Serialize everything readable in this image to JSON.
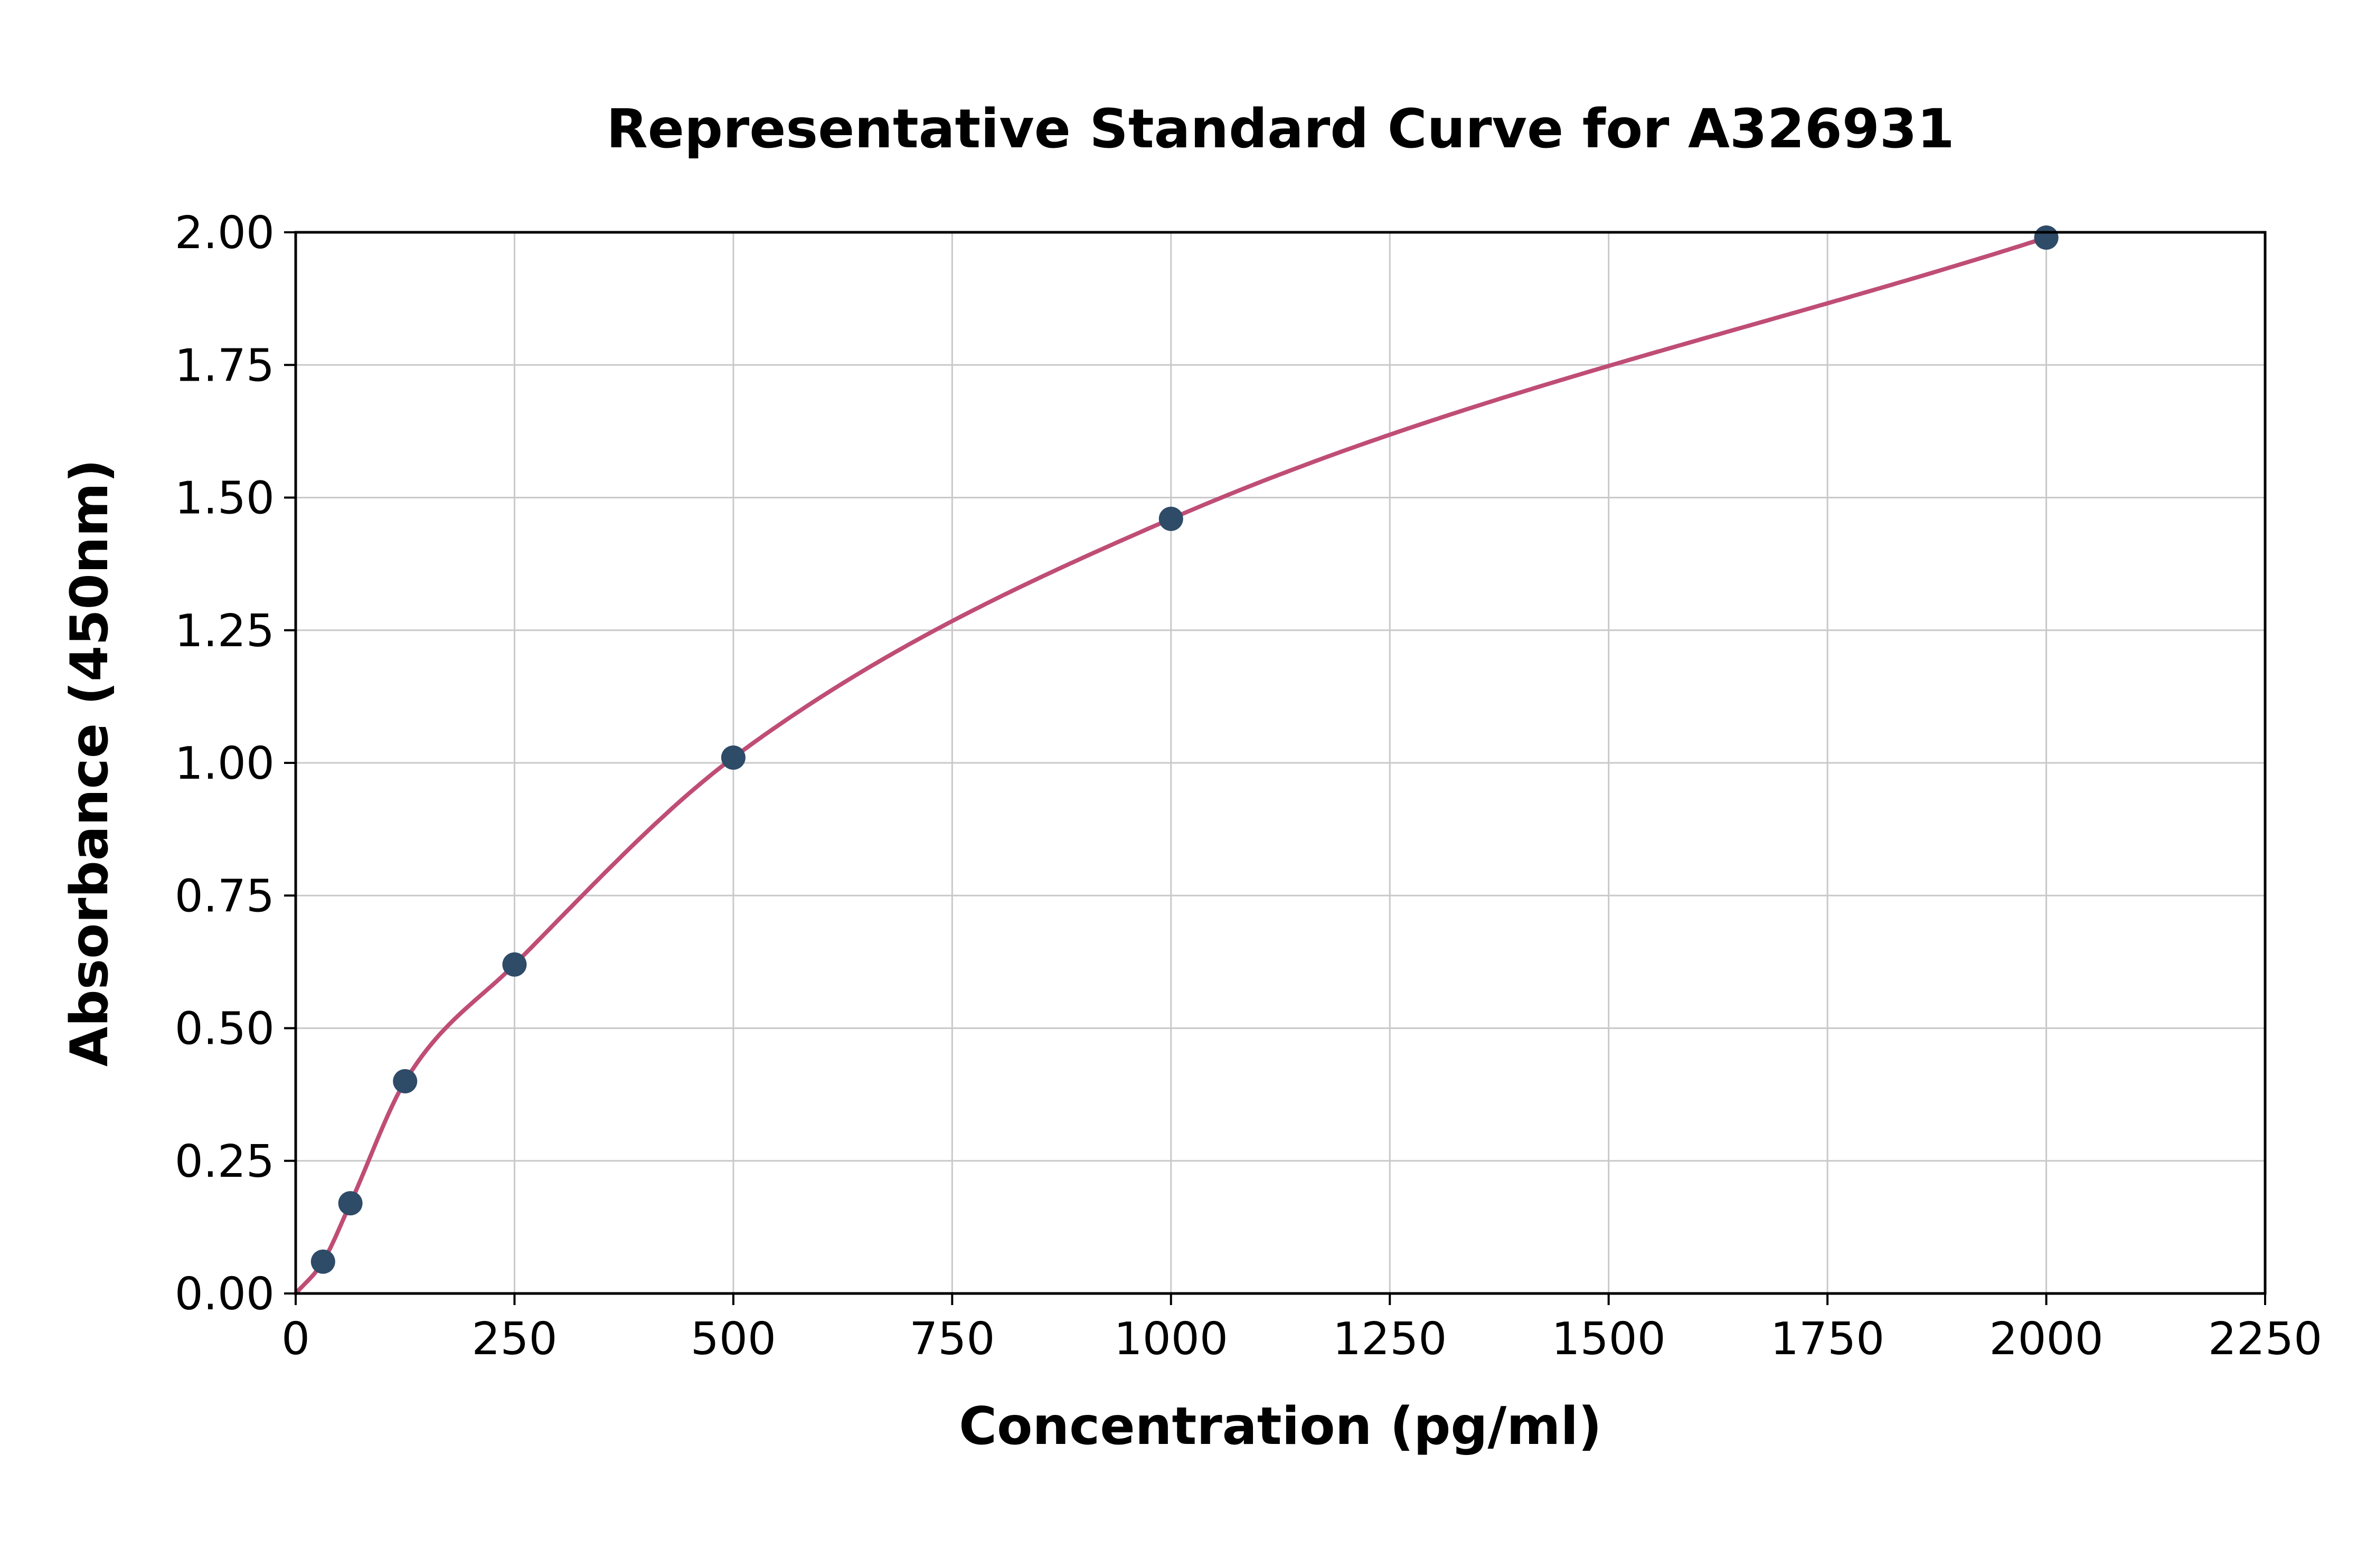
{
  "title": "Representative Standard Curve for A326931",
  "chart_data": {
    "type": "scatter",
    "title": "Representative Standard Curve for A326931",
    "xlabel": "Concentration (pg/ml)",
    "ylabel": "Absorbance (450nm)",
    "xlim": [
      0,
      2250
    ],
    "ylim": [
      0,
      2.0
    ],
    "grid": true,
    "legend": "none",
    "xticks": {
      "values": [
        0,
        250,
        500,
        750,
        1000,
        1250,
        1500,
        1750,
        2000,
        2250
      ],
      "labels": [
        "0",
        "250",
        "500",
        "750",
        "1000",
        "1250",
        "1500",
        "1750",
        "2000",
        "2250"
      ]
    },
    "yticks": {
      "values": [
        0,
        0.25,
        0.5,
        0.75,
        1.0,
        1.25,
        1.5,
        1.75,
        2.0
      ],
      "labels": [
        "0.00",
        "0.25",
        "0.50",
        "0.75",
        "1.00",
        "1.25",
        "1.50",
        "1.75",
        "2.00"
      ]
    },
    "series": [
      {
        "name": "standard-points",
        "type": "scatter",
        "x": [
          31.25,
          62.5,
          125,
          250,
          500,
          1000,
          2000
        ],
        "y": [
          0.06,
          0.17,
          0.4,
          0.62,
          1.01,
          1.46,
          1.99
        ],
        "color": "#2e4b68"
      },
      {
        "name": "fit-curve",
        "type": "line",
        "style": "smooth-monotone-fit-through-points-anchored-at-origin",
        "color": "#bf4d75"
      }
    ],
    "colors": {
      "point": "#2e4b68",
      "curve": "#bf4d75",
      "grid": "#c9c9c9",
      "axis": "#000000",
      "background": "#ffffff"
    }
  }
}
